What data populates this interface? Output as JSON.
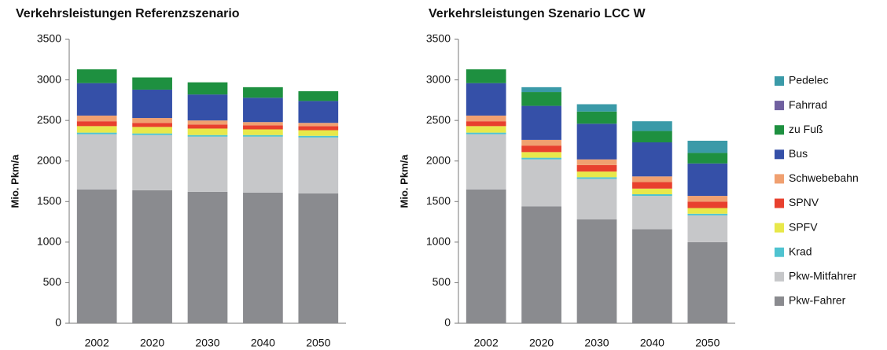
{
  "chart_data": [
    {
      "type": "bar",
      "stacked": true,
      "title": "Verkehrsleistungen Referenzszenario",
      "ylabel": "Mio. Pkm/a",
      "categories": [
        "2002",
        "2020",
        "2030",
        "2040",
        "2050"
      ],
      "ylim": [
        0,
        3500
      ],
      "yticks": [
        0,
        500,
        1000,
        1500,
        2000,
        2500,
        3000,
        3500
      ],
      "series": [
        {
          "name": "Pkw-Fahrer",
          "color": "#8a8b8f",
          "values": [
            1650,
            1640,
            1620,
            1610,
            1600
          ]
        },
        {
          "name": "Pkw-Mitfahrer",
          "color": "#c6c7c9",
          "values": [
            680,
            680,
            680,
            690,
            690
          ]
        },
        {
          "name": "Krad",
          "color": "#4fc3d0",
          "values": [
            20,
            20,
            20,
            20,
            20
          ]
        },
        {
          "name": "SPFV",
          "color": "#e8e84a",
          "values": [
            80,
            80,
            80,
            70,
            70
          ]
        },
        {
          "name": "SPNV",
          "color": "#e8402e",
          "values": [
            60,
            50,
            50,
            50,
            50
          ]
        },
        {
          "name": "Schwebebahn",
          "color": "#f0a070",
          "values": [
            70,
            60,
            50,
            40,
            40
          ]
        },
        {
          "name": "Bus",
          "color": "#3550a8",
          "values": [
            400,
            350,
            320,
            300,
            270
          ]
        },
        {
          "name": "zu Fuß",
          "color": "#1e9040",
          "values": [
            170,
            150,
            150,
            130,
            120
          ]
        },
        {
          "name": "Fahrrad",
          "color": "#7060a0",
          "values": [
            0,
            0,
            0,
            0,
            0
          ]
        },
        {
          "name": "Pedelec",
          "color": "#3a9aa8",
          "values": [
            0,
            0,
            0,
            0,
            0
          ]
        }
      ]
    },
    {
      "type": "bar",
      "stacked": true,
      "title": "Verkehrsleistungen Szenario LCC W",
      "ylabel": "Mio. Pkm/a",
      "categories": [
        "2002",
        "2020",
        "2030",
        "2040",
        "2050"
      ],
      "ylim": [
        0,
        3500
      ],
      "yticks": [
        0,
        500,
        1000,
        1500,
        2000,
        2500,
        3000,
        3500
      ],
      "legend": "right",
      "series": [
        {
          "name": "Pkw-Fahrer",
          "color": "#8a8b8f",
          "values": [
            1650,
            1440,
            1280,
            1160,
            1000
          ]
        },
        {
          "name": "Pkw-Mitfahrer",
          "color": "#c6c7c9",
          "values": [
            680,
            580,
            500,
            410,
            330
          ]
        },
        {
          "name": "Krad",
          "color": "#4fc3d0",
          "values": [
            20,
            20,
            20,
            20,
            20
          ]
        },
        {
          "name": "SPFV",
          "color": "#e8e84a",
          "values": [
            80,
            70,
            70,
            70,
            70
          ]
        },
        {
          "name": "SPNV",
          "color": "#e8402e",
          "values": [
            60,
            80,
            80,
            80,
            80
          ]
        },
        {
          "name": "Schwebebahn",
          "color": "#f0a070",
          "values": [
            70,
            70,
            70,
            70,
            70
          ]
        },
        {
          "name": "Bus",
          "color": "#3550a8",
          "values": [
            400,
            420,
            440,
            420,
            400
          ]
        },
        {
          "name": "zu Fuß",
          "color": "#1e9040",
          "values": [
            170,
            170,
            150,
            140,
            130
          ]
        },
        {
          "name": "Fahrrad",
          "color": "#7060a0",
          "values": [
            0,
            0,
            0,
            0,
            0
          ]
        },
        {
          "name": "Pedelec",
          "color": "#3a9aa8",
          "values": [
            0,
            60,
            90,
            120,
            150
          ]
        }
      ]
    }
  ]
}
